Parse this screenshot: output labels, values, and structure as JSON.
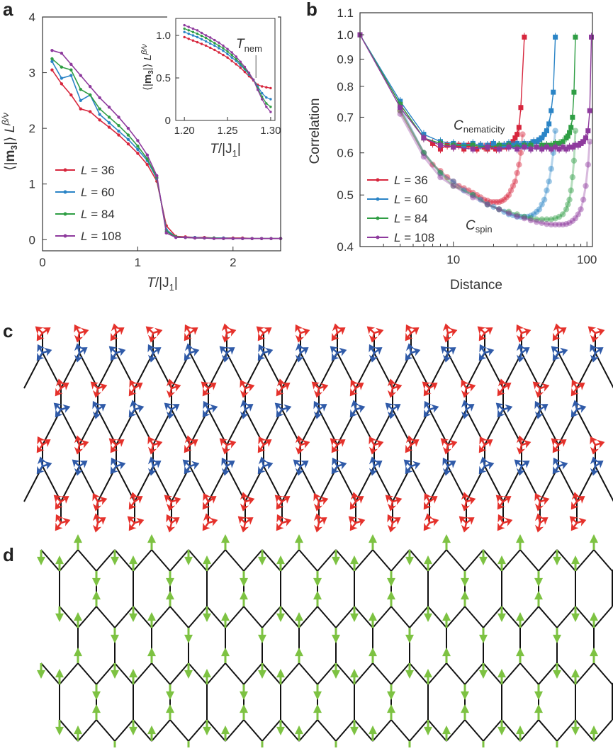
{
  "panel_labels": {
    "a": "a",
    "b": "b",
    "c": "c",
    "d": "d"
  },
  "colors": {
    "L36": "#d7263d",
    "L60": "#2a84c6",
    "L84": "#2f9e44",
    "L108": "#8e3a9d",
    "arrow_red": "#e5312b",
    "arrow_blue": "#2f5aa8",
    "arrow_green": "#7dc242",
    "bond": "#111111"
  },
  "chart_data": [
    {
      "id": "a-main",
      "type": "line",
      "xlabel_t": "T",
      "xlabel_rest": "/|J",
      "xlabel_sub": "1",
      "xlabel_end": "|",
      "ylabel": "⟨|m₃|⟩ L^(β/ν)",
      "xlim": [
        0,
        2.5
      ],
      "ylim": [
        -0.2,
        4
      ],
      "xticks": [
        "0",
        "1",
        "2"
      ],
      "xtick_vals": [
        0,
        1,
        2
      ],
      "yticks": [
        "0",
        "1",
        "2",
        "3",
        "4"
      ],
      "ytick_vals": [
        0,
        1,
        2,
        3,
        4
      ],
      "legend_prefix": "L = ",
      "series": [
        {
          "name": "36",
          "color_key": "L36",
          "x": [
            0.1,
            0.2,
            0.3,
            0.4,
            0.5,
            0.6,
            0.7,
            0.8,
            0.9,
            1.0,
            1.1,
            1.2,
            1.3,
            1.4,
            1.5,
            1.6,
            1.7,
            1.8,
            1.9,
            2.0,
            2.1,
            2.2,
            2.3,
            2.4,
            2.5
          ],
          "y": [
            3.05,
            2.8,
            2.6,
            2.35,
            2.3,
            2.15,
            2.02,
            1.88,
            1.72,
            1.55,
            1.35,
            1.05,
            0.25,
            0.06,
            0.05,
            0.04,
            0.04,
            0.03,
            0.03,
            0.03,
            0.03,
            0.02,
            0.02,
            0.02,
            0.02
          ]
        },
        {
          "name": "60",
          "color_key": "L60",
          "x": [
            0.1,
            0.2,
            0.3,
            0.4,
            0.5,
            0.6,
            0.7,
            0.8,
            0.9,
            1.0,
            1.1,
            1.2,
            1.3,
            1.4,
            1.5,
            1.6,
            1.7,
            1.8,
            1.9,
            2.0,
            2.1,
            2.2,
            2.3,
            2.4,
            2.5
          ],
          "y": [
            3.2,
            2.9,
            2.95,
            2.5,
            2.6,
            2.25,
            2.1,
            1.95,
            1.8,
            1.62,
            1.42,
            1.1,
            0.18,
            0.05,
            0.04,
            0.04,
            0.03,
            0.03,
            0.03,
            0.02,
            0.02,
            0.02,
            0.02,
            0.02,
            0.02
          ]
        },
        {
          "name": "84",
          "color_key": "L84",
          "x": [
            0.1,
            0.2,
            0.3,
            0.4,
            0.5,
            0.6,
            0.7,
            0.8,
            0.9,
            1.0,
            1.1,
            1.2,
            1.3,
            1.4,
            1.5,
            1.6,
            1.7,
            1.8,
            1.9,
            2.0,
            2.1,
            2.2,
            2.3,
            2.4,
            2.5
          ],
          "y": [
            3.25,
            3.1,
            3.05,
            2.7,
            2.6,
            2.35,
            2.2,
            2.05,
            1.88,
            1.68,
            1.45,
            1.12,
            0.15,
            0.05,
            0.04,
            0.03,
            0.03,
            0.03,
            0.02,
            0.02,
            0.02,
            0.02,
            0.02,
            0.02,
            0.02
          ]
        },
        {
          "name": "108",
          "color_key": "L108",
          "x": [
            0.1,
            0.2,
            0.3,
            0.4,
            0.5,
            0.6,
            0.7,
            0.8,
            0.9,
            1.0,
            1.1,
            1.2,
            1.3,
            1.4,
            1.5,
            1.6,
            1.7,
            1.8,
            1.9,
            2.0,
            2.1,
            2.2,
            2.3,
            2.4,
            2.5
          ],
          "y": [
            3.4,
            3.35,
            3.15,
            2.95,
            2.75,
            2.55,
            2.38,
            2.2,
            2.0,
            1.78,
            1.52,
            1.15,
            0.12,
            0.04,
            0.04,
            0.03,
            0.03,
            0.02,
            0.02,
            0.02,
            0.02,
            0.02,
            0.02,
            0.02,
            0.02
          ]
        }
      ]
    },
    {
      "id": "a-inset",
      "type": "line",
      "xlabel_t": "T",
      "xlabel_rest": "/|J",
      "xlabel_sub": "1",
      "xlabel_end": "|",
      "xlim": [
        1.19,
        1.305
      ],
      "ylim": [
        0,
        1.2
      ],
      "xticks": [
        "1.20",
        "1.25",
        "1.30"
      ],
      "xtick_vals": [
        1.2,
        1.25,
        1.3
      ],
      "yticks": [
        "0",
        "0.5",
        "1.0"
      ],
      "ytick_vals": [
        0,
        0.5,
        1.0
      ],
      "annotation": "T",
      "annotation_sub": "nem",
      "annotation_x": 1.283,
      "series": [
        {
          "name": "36",
          "color_key": "L36",
          "x": [
            1.2,
            1.205,
            1.21,
            1.215,
            1.22,
            1.225,
            1.23,
            1.235,
            1.24,
            1.245,
            1.25,
            1.255,
            1.26,
            1.265,
            1.27,
            1.275,
            1.28,
            1.285,
            1.29,
            1.295,
            1.3
          ],
          "y": [
            0.98,
            0.96,
            0.94,
            0.92,
            0.9,
            0.88,
            0.855,
            0.83,
            0.8,
            0.77,
            0.74,
            0.7,
            0.66,
            0.62,
            0.57,
            0.52,
            0.47,
            0.42,
            0.4,
            0.39,
            0.38
          ]
        },
        {
          "name": "60",
          "color_key": "L60",
          "x": [
            1.2,
            1.205,
            1.21,
            1.215,
            1.22,
            1.225,
            1.23,
            1.235,
            1.24,
            1.245,
            1.25,
            1.255,
            1.26,
            1.265,
            1.27,
            1.275,
            1.28,
            1.285,
            1.29,
            1.295,
            1.3
          ],
          "y": [
            1.04,
            1.02,
            1.0,
            0.98,
            0.955,
            0.93,
            0.905,
            0.88,
            0.85,
            0.82,
            0.78,
            0.74,
            0.7,
            0.65,
            0.6,
            0.54,
            0.48,
            0.4,
            0.32,
            0.27,
            0.25
          ]
        },
        {
          "name": "84",
          "color_key": "L84",
          "x": [
            1.2,
            1.205,
            1.21,
            1.215,
            1.22,
            1.225,
            1.23,
            1.235,
            1.24,
            1.245,
            1.25,
            1.255,
            1.26,
            1.265,
            1.27,
            1.275,
            1.28,
            1.285,
            1.29,
            1.295,
            1.3
          ],
          "y": [
            1.08,
            1.06,
            1.04,
            1.02,
            0.995,
            0.97,
            0.94,
            0.91,
            0.88,
            0.85,
            0.81,
            0.77,
            0.72,
            0.67,
            0.61,
            0.55,
            0.48,
            0.38,
            0.28,
            0.2,
            0.16
          ]
        },
        {
          "name": "108",
          "color_key": "L108",
          "x": [
            1.2,
            1.205,
            1.21,
            1.215,
            1.22,
            1.225,
            1.23,
            1.235,
            1.24,
            1.245,
            1.25,
            1.255,
            1.26,
            1.265,
            1.27,
            1.275,
            1.28,
            1.285,
            1.29,
            1.295,
            1.3
          ],
          "y": [
            1.12,
            1.1,
            1.08,
            1.06,
            1.03,
            1.0,
            0.975,
            0.945,
            0.915,
            0.88,
            0.84,
            0.8,
            0.75,
            0.69,
            0.63,
            0.56,
            0.48,
            0.36,
            0.25,
            0.16,
            0.1
          ]
        }
      ]
    },
    {
      "id": "b",
      "type": "scatter",
      "xscale": "log",
      "yscale": "log",
      "xlabel": "Distance",
      "ylabel": "Correlation",
      "xlim": [
        2,
        110
      ],
      "ylim": [
        0.4,
        1.1
      ],
      "xticks": [
        "10",
        "100"
      ],
      "xtick_vals": [
        10,
        100
      ],
      "yticks": [
        "0.4",
        "0.5",
        "0.6",
        "0.7",
        "0.8",
        "0.9",
        "1.0",
        "1.1"
      ],
      "ytick_vals": [
        0.4,
        0.5,
        0.6,
        0.7,
        0.8,
        0.9,
        1.0,
        1.1
      ],
      "legend_prefix": "L = ",
      "label_nem": "C",
      "label_nem_sub": "nematicity",
      "label_spin": "C",
      "label_spin_sub": "spin",
      "series": [
        {
          "name": "36",
          "color_key": "L36",
          "kind": "nematicity",
          "x": [
            2,
            4,
            6,
            7,
            8,
            9,
            10,
            11,
            12,
            13,
            14,
            15,
            16,
            17,
            18,
            19,
            20,
            21,
            22,
            23,
            24,
            25,
            26,
            27,
            28,
            29,
            30,
            31,
            32,
            34
          ],
          "y": [
            1.0,
            0.74,
            0.64,
            0.625,
            0.61,
            0.62,
            0.615,
            0.62,
            0.61,
            0.62,
            0.615,
            0.61,
            0.62,
            0.615,
            0.61,
            0.62,
            0.615,
            0.61,
            0.62,
            0.615,
            0.62,
            0.615,
            0.62,
            0.625,
            0.63,
            0.64,
            0.65,
            0.67,
            0.73,
            0.99
          ]
        },
        {
          "name": "36",
          "color_key": "L36",
          "kind": "spin",
          "x": [
            4,
            6,
            7,
            8,
            9,
            10,
            11,
            12,
            13,
            14,
            15,
            16,
            17,
            18,
            19,
            20,
            21,
            22,
            23,
            24,
            25,
            26,
            27,
            28,
            29,
            30,
            31,
            32,
            33
          ],
          "y": [
            0.72,
            0.6,
            0.57,
            0.555,
            0.54,
            0.53,
            0.52,
            0.515,
            0.51,
            0.505,
            0.5,
            0.495,
            0.49,
            0.488,
            0.485,
            0.485,
            0.485,
            0.485,
            0.487,
            0.49,
            0.495,
            0.5,
            0.51,
            0.52,
            0.53,
            0.55,
            0.57,
            0.6,
            0.65
          ]
        },
        {
          "name": "60",
          "color_key": "L60",
          "kind": "nematicity",
          "x": [
            2,
            4,
            6,
            8,
            10,
            12,
            14,
            16,
            18,
            20,
            22,
            24,
            26,
            28,
            30,
            32,
            34,
            36,
            38,
            40,
            42,
            44,
            46,
            48,
            50,
            52,
            54,
            56,
            58
          ],
          "y": [
            1.0,
            0.75,
            0.65,
            0.63,
            0.625,
            0.62,
            0.625,
            0.62,
            0.62,
            0.625,
            0.62,
            0.62,
            0.625,
            0.62,
            0.625,
            0.62,
            0.625,
            0.62,
            0.625,
            0.63,
            0.63,
            0.635,
            0.64,
            0.65,
            0.66,
            0.68,
            0.72,
            0.78,
            0.99
          ]
        },
        {
          "name": "60",
          "color_key": "L60",
          "kind": "spin",
          "x": [
            4,
            6,
            8,
            10,
            12,
            14,
            16,
            18,
            20,
            22,
            24,
            26,
            28,
            30,
            32,
            34,
            36,
            38,
            40,
            42,
            44,
            46,
            48,
            50,
            52,
            54,
            56,
            58
          ],
          "y": [
            0.73,
            0.6,
            0.55,
            0.53,
            0.51,
            0.5,
            0.49,
            0.48,
            0.475,
            0.47,
            0.465,
            0.46,
            0.458,
            0.455,
            0.455,
            0.455,
            0.455,
            0.457,
            0.46,
            0.465,
            0.47,
            0.48,
            0.49,
            0.51,
            0.53,
            0.56,
            0.6,
            0.66
          ]
        },
        {
          "name": "84",
          "color_key": "L84",
          "kind": "nematicity",
          "x": [
            2,
            4,
            6,
            8,
            10,
            14,
            18,
            22,
            26,
            30,
            34,
            38,
            42,
            46,
            50,
            54,
            58,
            62,
            66,
            70,
            72,
            74,
            76,
            78,
            80,
            82
          ],
          "y": [
            1.0,
            0.74,
            0.64,
            0.625,
            0.62,
            0.62,
            0.615,
            0.62,
            0.62,
            0.615,
            0.62,
            0.62,
            0.615,
            0.62,
            0.62,
            0.62,
            0.625,
            0.625,
            0.63,
            0.64,
            0.645,
            0.655,
            0.67,
            0.7,
            0.78,
            0.99
          ]
        },
        {
          "name": "84",
          "color_key": "L84",
          "kind": "spin",
          "x": [
            4,
            6,
            8,
            10,
            14,
            18,
            22,
            26,
            30,
            34,
            38,
            42,
            46,
            50,
            54,
            58,
            62,
            66,
            70,
            72,
            74,
            76,
            78,
            80,
            82
          ],
          "y": [
            0.72,
            0.6,
            0.55,
            0.52,
            0.5,
            0.48,
            0.47,
            0.465,
            0.46,
            0.455,
            0.452,
            0.45,
            0.45,
            0.45,
            0.45,
            0.452,
            0.455,
            0.46,
            0.47,
            0.48,
            0.49,
            0.51,
            0.54,
            0.58,
            0.66
          ]
        },
        {
          "name": "108",
          "color_key": "L108",
          "kind": "nematicity",
          "x": [
            2,
            4,
            6,
            8,
            10,
            14,
            18,
            22,
            26,
            30,
            34,
            38,
            42,
            46,
            50,
            54,
            58,
            62,
            66,
            70,
            74,
            78,
            82,
            86,
            90,
            94,
            98,
            102,
            105,
            108
          ],
          "y": [
            1.0,
            0.73,
            0.64,
            0.62,
            0.615,
            0.61,
            0.615,
            0.61,
            0.615,
            0.61,
            0.615,
            0.61,
            0.615,
            0.61,
            0.615,
            0.61,
            0.615,
            0.61,
            0.615,
            0.61,
            0.615,
            0.615,
            0.62,
            0.62,
            0.625,
            0.63,
            0.64,
            0.66,
            0.72,
            0.99
          ]
        },
        {
          "name": "108",
          "color_key": "L108",
          "kind": "spin",
          "x": [
            4,
            6,
            8,
            10,
            14,
            18,
            22,
            26,
            30,
            34,
            38,
            42,
            46,
            50,
            54,
            58,
            62,
            66,
            70,
            74,
            78,
            82,
            86,
            90,
            94,
            98,
            102,
            105
          ],
          "y": [
            0.71,
            0.59,
            0.54,
            0.52,
            0.495,
            0.48,
            0.47,
            0.462,
            0.456,
            0.452,
            0.448,
            0.445,
            0.443,
            0.441,
            0.44,
            0.44,
            0.44,
            0.44,
            0.441,
            0.443,
            0.447,
            0.452,
            0.46,
            0.47,
            0.49,
            0.52,
            0.57,
            0.63
          ]
        }
      ]
    }
  ]
}
